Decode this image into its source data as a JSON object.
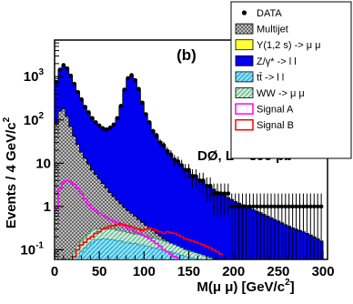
{
  "chart_data": {
    "type": "histogram",
    "panel_label": "(b)",
    "experiment_label": "DØ, L = 395 pb",
    "experiment_label_sup": "-1",
    "xlabel": "M(μ μ) [GeV/c",
    "xlabel_sup": "2",
    "xlabel_tail": "]",
    "ylabel": "Events / 4 GeV/c",
    "ylabel_sup": "2",
    "xlim": [
      0,
      305
    ],
    "ylim": [
      0.06,
      7000
    ],
    "yscale": "log",
    "bin_width": 4,
    "x_ticks": [
      0,
      50,
      100,
      150,
      200,
      250,
      300
    ],
    "y_ticks": [
      {
        "value": 0.1,
        "base": "10",
        "sup": "-1"
      },
      {
        "value": 1,
        "base": "1",
        "sup": ""
      },
      {
        "value": 10,
        "base": "10",
        "sup": ""
      },
      {
        "value": 100,
        "base": "10",
        "sup": "2"
      },
      {
        "value": 1000,
        "base": "10",
        "sup": "3"
      }
    ],
    "legend": {
      "placement": "top-right",
      "entries": [
        {
          "label": "DATA",
          "style": "marker",
          "color": "#000000"
        },
        {
          "label": "Multijet",
          "style": "box",
          "fill": "#9a9a9a",
          "pattern": "crosshatch"
        },
        {
          "label": "Υ(1,2 s) -> μ μ",
          "style": "box",
          "fill": "#ffff33",
          "border": "#000000"
        },
        {
          "label": "Z/γ* -> l l",
          "style": "box",
          "fill": "#0000ee"
        },
        {
          "label": "tt̄ -> l l",
          "style": "box",
          "fill": "#7fe5ff",
          "pattern": "diagonal"
        },
        {
          "label": "WW -> μ μ",
          "style": "box",
          "fill": "#c9ecd9",
          "pattern": "diagonal-green"
        },
        {
          "label": "Signal A",
          "style": "line",
          "color": "#ff00ff"
        },
        {
          "label": "Signal B",
          "style": "line",
          "color": "#ff0000"
        }
      ]
    },
    "series": [
      {
        "name": "Z/γ* -> l l (stack total)",
        "x": [
          2,
          6,
          10,
          14,
          18,
          22,
          26,
          30,
          34,
          38,
          42,
          46,
          50,
          54,
          58,
          62,
          66,
          70,
          74,
          78,
          82,
          86,
          90,
          94,
          98,
          102,
          106,
          110,
          114,
          118,
          122,
          126,
          130,
          134,
          138,
          142,
          146,
          150,
          154,
          158,
          162,
          166,
          170,
          174,
          178,
          182,
          186,
          190,
          194,
          198,
          202,
          206,
          210,
          214,
          218,
          222,
          226,
          230,
          234,
          238,
          242,
          246,
          250,
          254,
          258,
          262,
          266,
          270,
          274,
          278,
          282,
          286,
          290,
          294,
          298
        ],
        "values": [
          700,
          1400,
          1800,
          1600,
          1100,
          700,
          450,
          300,
          210,
          150,
          115,
          90,
          75,
          65,
          62,
          65,
          75,
          105,
          200,
          480,
          900,
          1050,
          850,
          500,
          260,
          140,
          85,
          58,
          42,
          32,
          25,
          20,
          16,
          13,
          11,
          9,
          7.5,
          6.5,
          5.5,
          4.8,
          4.2,
          3.7,
          3.2,
          2.8,
          2.5,
          2.2,
          2,
          1.8,
          1.6,
          1.45,
          1.3,
          1.2,
          1.1,
          1,
          0.92,
          0.85,
          0.78,
          0.72,
          0.66,
          0.6,
          0.55,
          0.5,
          0.46,
          0.42,
          0.38,
          0.35,
          0.32,
          0.3,
          0.28,
          0.26,
          0.24,
          0.22,
          0.2,
          0.18,
          0.16
        ]
      },
      {
        "name": "Multijet",
        "x": [
          2,
          6,
          10,
          14,
          18,
          22,
          26,
          30,
          34,
          38,
          42,
          46,
          50,
          54,
          58,
          62,
          66,
          70,
          74,
          78,
          82,
          86,
          90,
          94,
          98,
          102,
          106,
          110,
          114,
          118,
          122,
          126,
          130,
          134,
          138,
          142,
          146,
          150,
          154,
          158,
          162,
          166,
          170,
          174,
          178,
          182,
          186,
          190,
          194,
          198,
          202,
          206,
          210,
          214,
          218,
          222,
          226,
          230,
          234,
          238,
          242,
          246,
          250,
          254,
          258,
          262,
          266,
          270,
          274,
          278,
          282,
          286,
          290,
          294,
          298
        ],
        "values": [
          80,
          160,
          180,
          120,
          70,
          42,
          27,
          18,
          13,
          9.5,
          7,
          5.5,
          4.3,
          3.4,
          2.7,
          2.1,
          1.7,
          1.4,
          1.15,
          0.95,
          0.8,
          0.7,
          0.6,
          0.5,
          0.43,
          0.37,
          0.32,
          0.28,
          0.24,
          0.21,
          0.18,
          0.16,
          0.14,
          0.12,
          0.11,
          0.1,
          0.09,
          0.08,
          0.07,
          0.065,
          0.06,
          0.06,
          0.06,
          0.06,
          0.06,
          0.06,
          0.06,
          0.06,
          0.06,
          0.06,
          0.06,
          0.06,
          0.06,
          0.06,
          0.06,
          0.06,
          0.06,
          0.06,
          0.06,
          0.06,
          0.06,
          0.06,
          0.06,
          0.06,
          0.06,
          0.06,
          0.06,
          0.06,
          0.06,
          0.06,
          0.06,
          0.06,
          0.06,
          0.06,
          0.06
        ]
      },
      {
        "name": "WW -> μ μ",
        "x": [
          22,
          26,
          30,
          34,
          38,
          42,
          46,
          50,
          54,
          58,
          62,
          66,
          70,
          74,
          78,
          82,
          86,
          90,
          94,
          98,
          102,
          106,
          110,
          114,
          118,
          122,
          126,
          130,
          134,
          138,
          142,
          146,
          150,
          154,
          158,
          162,
          166,
          170,
          174
        ],
        "values": [
          0.09,
          0.12,
          0.16,
          0.2,
          0.24,
          0.28,
          0.3,
          0.3,
          0.31,
          0.3,
          0.3,
          0.3,
          0.28,
          0.27,
          0.26,
          0.25,
          0.24,
          0.23,
          0.23,
          0.22,
          0.21,
          0.2,
          0.19,
          0.18,
          0.17,
          0.16,
          0.15,
          0.14,
          0.13,
          0.12,
          0.11,
          0.1,
          0.095,
          0.09,
          0.085,
          0.08,
          0.075,
          0.07,
          0.065
        ]
      },
      {
        "name": "tt̄ -> l l",
        "x": [
          26,
          30,
          34,
          38,
          42,
          46,
          50,
          54,
          58,
          62,
          66,
          70,
          74,
          78,
          82,
          86,
          90,
          94,
          98,
          102,
          106,
          110,
          114,
          118,
          122,
          126,
          130,
          134,
          138,
          142,
          146,
          150,
          154,
          158,
          162,
          166,
          170
        ],
        "values": [
          0.07,
          0.09,
          0.11,
          0.13,
          0.15,
          0.17,
          0.17,
          0.18,
          0.18,
          0.17,
          0.17,
          0.16,
          0.16,
          0.15,
          0.15,
          0.14,
          0.14,
          0.13,
          0.13,
          0.12,
          0.12,
          0.11,
          0.11,
          0.1,
          0.1,
          0.09,
          0.09,
          0.085,
          0.08,
          0.075,
          0.07,
          0.068,
          0.065,
          0.062,
          0.06,
          0.06,
          0.06
        ]
      },
      {
        "name": "Signal A",
        "x": [
          2,
          6,
          10,
          14,
          18,
          22,
          26,
          30,
          34,
          38,
          42,
          46,
          50,
          54,
          58,
          62,
          66,
          70,
          74,
          78,
          82,
          86,
          90,
          94,
          98,
          102,
          106,
          110,
          114,
          118,
          122,
          126,
          130,
          134,
          138
        ],
        "values": [
          0.9,
          2.6,
          3.6,
          3.9,
          3.7,
          3.2,
          2.6,
          2,
          1.5,
          1.1,
          0.9,
          0.8,
          0.7,
          0.62,
          0.56,
          0.5,
          0.46,
          0.42,
          0.38,
          0.35,
          0.32,
          0.29,
          0.26,
          0.24,
          0.22,
          0.2,
          0.18,
          0.16,
          0.14,
          0.12,
          0.1,
          0.09,
          0.08,
          0.07,
          0.065
        ]
      },
      {
        "name": "Signal B",
        "x": [
          22,
          26,
          30,
          34,
          38,
          42,
          46,
          50,
          54,
          58,
          62,
          66,
          70,
          74,
          78,
          82,
          86,
          90,
          94,
          98,
          102,
          106,
          110,
          114,
          118,
          122,
          126,
          130,
          134,
          138,
          142,
          146,
          150,
          154,
          158,
          162,
          166,
          170,
          174,
          178,
          182,
          186
        ],
        "values": [
          0.07,
          0.1,
          0.13,
          0.15,
          0.18,
          0.2,
          0.24,
          0.26,
          0.3,
          0.32,
          0.35,
          0.36,
          0.38,
          0.4,
          0.38,
          0.36,
          0.34,
          0.32,
          0.3,
          0.28,
          0.3,
          0.32,
          0.3,
          0.28,
          0.26,
          0.24,
          0.26,
          0.25,
          0.24,
          0.22,
          0.2,
          0.18,
          0.17,
          0.16,
          0.15,
          0.14,
          0.13,
          0.12,
          0.11,
          0.1,
          0.09,
          0.08
        ]
      },
      {
        "name": "DATA",
        "x": [
          2,
          6,
          10,
          14,
          18,
          22,
          26,
          30,
          34,
          38,
          42,
          46,
          50,
          54,
          58,
          62,
          66,
          70,
          74,
          78,
          82,
          86,
          90,
          94,
          98,
          102,
          106,
          110,
          114,
          118,
          122,
          126,
          130,
          134,
          138,
          142,
          146,
          150,
          154,
          158,
          162,
          166,
          170,
          174,
          178,
          182,
          186,
          190,
          194,
          198,
          202,
          206,
          210,
          214,
          218,
          222,
          226,
          230,
          234,
          238,
          242,
          246,
          250,
          254,
          258,
          262,
          266,
          270,
          274,
          278,
          282,
          286,
          290,
          294,
          298
        ],
        "values": [
          750,
          1450,
          1850,
          1550,
          1050,
          680,
          440,
          300,
          200,
          150,
          110,
          88,
          74,
          64,
          60,
          66,
          78,
          110,
          210,
          500,
          920,
          1080,
          830,
          520,
          250,
          135,
          88,
          55,
          44,
          30,
          26,
          19,
          16,
          12,
          11,
          9,
          7,
          7,
          5,
          5,
          4,
          4,
          3,
          3,
          2,
          2,
          2,
          2,
          2,
          1,
          1,
          1,
          1,
          1,
          1,
          1,
          1,
          1,
          1,
          1,
          1,
          1,
          1,
          1,
          1,
          1,
          1,
          1,
          1,
          1,
          1,
          1,
          1,
          1,
          1
        ],
        "errors": [
          27,
          38,
          43,
          39,
          32,
          26,
          21,
          17,
          14,
          12,
          10.5,
          9.4,
          8.6,
          8,
          7.7,
          8.1,
          8.8,
          10.5,
          14.5,
          22,
          30,
          33,
          29,
          23,
          16,
          11.6,
          9.4,
          7.4,
          6.6,
          5.5,
          5.1,
          4.4,
          4,
          3.5,
          3.3,
          3,
          2.6,
          2.6,
          2.2,
          2.2,
          2,
          2,
          1.7,
          1.7,
          1.4,
          1.4,
          1.4,
          1.4,
          1.4,
          1,
          1,
          1,
          1,
          1,
          1,
          1,
          1,
          1,
          1,
          1,
          1,
          1,
          1,
          1,
          1,
          1,
          1,
          1,
          1,
          1,
          1,
          1,
          1,
          1,
          1
        ],
        "nonzero_bins_high_mass": [
          202,
          210,
          214,
          222,
          230,
          238,
          250,
          262,
          266,
          286
        ]
      }
    ]
  }
}
